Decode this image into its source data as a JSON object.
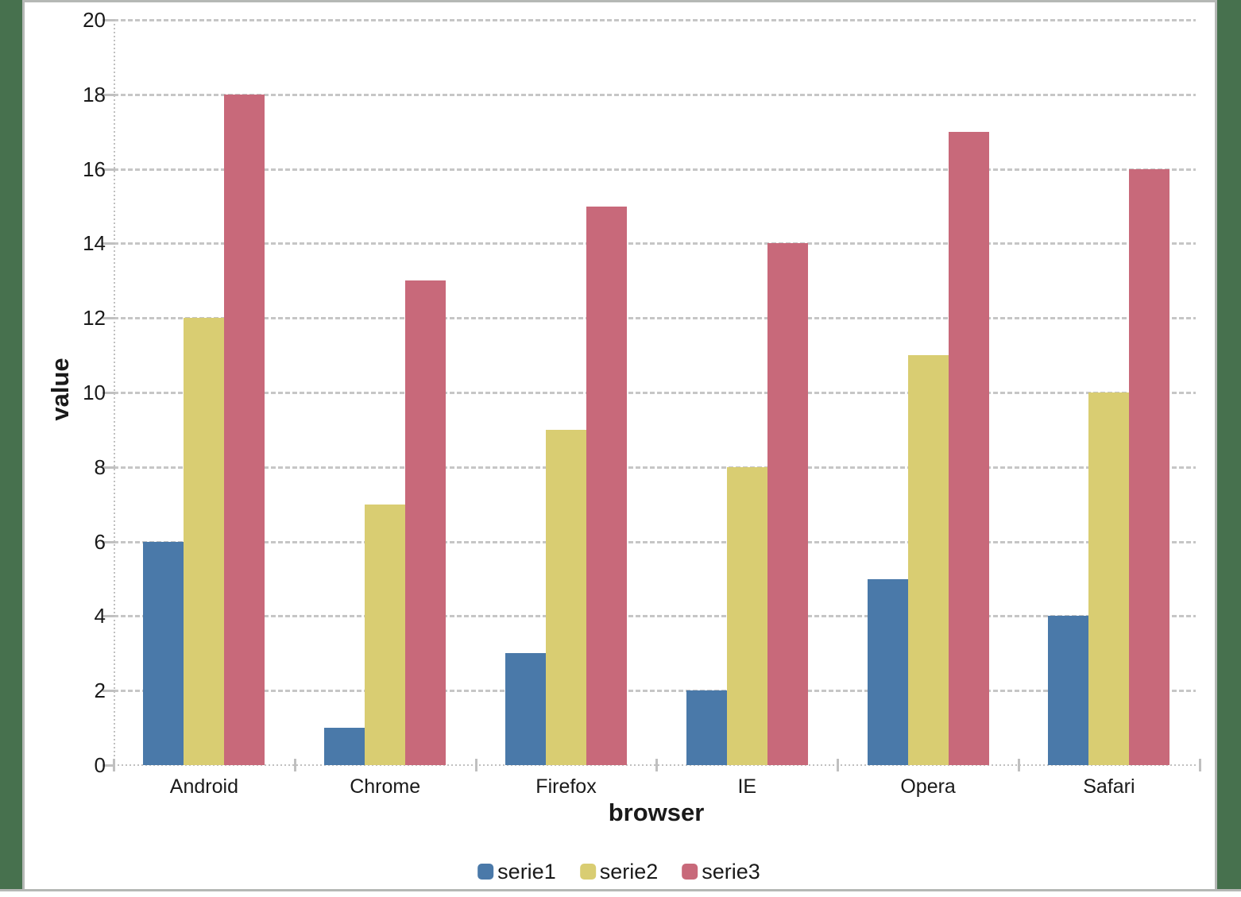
{
  "chart_data": {
    "type": "bar",
    "title": "",
    "xlabel": "browser",
    "ylabel": "value",
    "categories": [
      "Android",
      "Chrome",
      "Firefox",
      "IE",
      "Opera",
      "Safari"
    ],
    "series": [
      {
        "name": "serie1",
        "color": "#4a79a9",
        "values": [
          6,
          1,
          3,
          2,
          5,
          4
        ]
      },
      {
        "name": "serie2",
        "color": "#d9cd72",
        "values": [
          12,
          7,
          9,
          8,
          11,
          10
        ]
      },
      {
        "name": "serie3",
        "color": "#c8697a",
        "values": [
          18,
          13,
          15,
          14,
          17,
          16
        ]
      }
    ],
    "ylim": [
      0,
      20
    ],
    "ytick_step": 2,
    "yticks": [
      "0",
      "2",
      "4",
      "6",
      "8",
      "10",
      "12",
      "14",
      "16",
      "18",
      "20"
    ],
    "grid": true,
    "legend_position": "bottom"
  },
  "style": {
    "backdrop_color": "#47714e",
    "panel_border_color": "#b5b8b5",
    "grid_color": "#c6c6c6",
    "axis_color": "#c0c0c0",
    "text_color": "#1a1a1a"
  }
}
